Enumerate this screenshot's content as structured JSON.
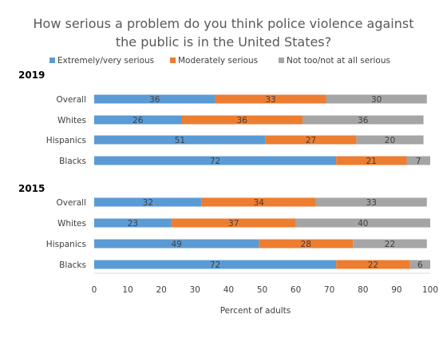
{
  "chart_data": {
    "type": "bar",
    "orientation": "horizontal",
    "stacked": true,
    "title_lines": [
      "How serious a problem do you think police violence against",
      "the public is in the United States?"
    ],
    "xlabel": "Percent of adults",
    "xlim": [
      0,
      100
    ],
    "xticks": [
      "0",
      "10",
      "20",
      "30",
      "40",
      "50",
      "60",
      "70",
      "80",
      "90",
      "100"
    ],
    "grid": false,
    "legend_position": "top",
    "series": [
      {
        "name": "Extremely/very serious",
        "color": "#5b9bd5"
      },
      {
        "name": "Moderately serious",
        "color": "#ed7d31"
      },
      {
        "name": "Not too/not at all serious",
        "color": "#a5a5a5"
      }
    ],
    "groups": [
      {
        "label": "2019",
        "rows": [
          {
            "category": "Overall",
            "values": [
              36,
              33,
              30
            ]
          },
          {
            "category": "Whites",
            "values": [
              26,
              36,
              36
            ]
          },
          {
            "category": "Hispanics",
            "values": [
              51,
              27,
              20
            ]
          },
          {
            "category": "Blacks",
            "values": [
              72,
              21,
              7
            ]
          }
        ]
      },
      {
        "label": "2015",
        "rows": [
          {
            "category": "Overall",
            "values": [
              32,
              34,
              33
            ]
          },
          {
            "category": "Whites",
            "values": [
              23,
              37,
              40
            ]
          },
          {
            "category": "Hispanics",
            "values": [
              49,
              28,
              22
            ]
          },
          {
            "category": "Blacks",
            "values": [
              72,
              22,
              6
            ]
          }
        ]
      }
    ]
  }
}
